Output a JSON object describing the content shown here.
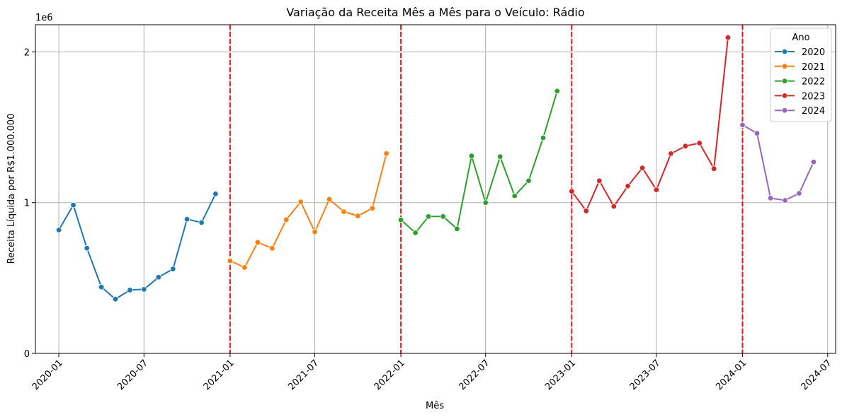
{
  "chart_data": {
    "type": "line",
    "title": "Variação da Receita Mês a Mês para o Veículo: Rádio",
    "xlabel": "Mês",
    "ylabel": "Receita Líquida por R$1.000.000",
    "y_offset_label": "1e6",
    "x_range": [
      "2019-11-12",
      "2024-07-18"
    ],
    "ylim": [
      0,
      2000000
    ],
    "y_ticks": [
      0,
      1000000,
      2000000
    ],
    "y_tick_labels": [
      "0",
      "1",
      "2"
    ],
    "x_ticks": [
      "2020-01-01",
      "2020-07-01",
      "2021-01-01",
      "2021-07-01",
      "2022-01-01",
      "2022-07-01",
      "2023-01-01",
      "2023-07-01",
      "2024-01-01",
      "2024-07-01"
    ],
    "x_tick_labels": [
      "2020-01",
      "2020-07",
      "2021-01",
      "2021-07",
      "2022-01",
      "2022-07",
      "2023-01",
      "2023-07",
      "2024-01",
      "2024-07"
    ],
    "grid": true,
    "vlines": [
      "2021-01-01",
      "2022-01-01",
      "2023-01-01",
      "2024-01-01"
    ],
    "vline_color": "#e8131b",
    "legend": {
      "title": "Ano",
      "placement": "top-right"
    },
    "series": [
      {
        "name": "2020",
        "color": "#1f77b4",
        "x": [
          "2020-01-01",
          "2020-02-01",
          "2020-03-01",
          "2020-04-01",
          "2020-05-01",
          "2020-06-01",
          "2020-07-01",
          "2020-08-01",
          "2020-09-01",
          "2020-10-01",
          "2020-11-01",
          "2020-12-01"
        ],
        "y": [
          818000,
          984000,
          698000,
          440000,
          360000,
          420000,
          425000,
          505000,
          560000,
          890000,
          868000,
          1058000
        ]
      },
      {
        "name": "2021",
        "color": "#ff7f0e",
        "x": [
          "2021-01-01",
          "2021-02-01",
          "2021-03-01",
          "2021-04-01",
          "2021-05-01",
          "2021-06-01",
          "2021-07-01",
          "2021-08-01",
          "2021-09-01",
          "2021-10-01",
          "2021-11-01",
          "2021-12-01"
        ],
        "y": [
          614000,
          570000,
          737000,
          697000,
          887000,
          1005000,
          806000,
          1022000,
          940000,
          912000,
          963000,
          1326000
        ]
      },
      {
        "name": "2022",
        "color": "#2ca02c",
        "x": [
          "2022-01-01",
          "2022-02-01",
          "2022-03-01",
          "2022-04-01",
          "2022-05-01",
          "2022-06-01",
          "2022-07-01",
          "2022-08-01",
          "2022-09-01",
          "2022-10-01",
          "2022-11-01",
          "2022-12-01"
        ],
        "y": [
          886000,
          800000,
          908000,
          908000,
          826000,
          1310000,
          1000000,
          1305000,
          1045000,
          1145000,
          1430000,
          1740000
        ]
      },
      {
        "name": "2023",
        "color": "#d62728",
        "x": [
          "2023-01-01",
          "2023-02-01",
          "2023-03-01",
          "2023-04-01",
          "2023-05-01",
          "2023-06-01",
          "2023-07-01",
          "2023-08-01",
          "2023-09-01",
          "2023-10-01",
          "2023-11-01",
          "2023-12-01"
        ],
        "y": [
          1075000,
          945000,
          1145000,
          975000,
          1110000,
          1230000,
          1085000,
          1325000,
          1375000,
          1395000,
          1225000,
          2095000
        ]
      },
      {
        "name": "2024",
        "color": "#9467bd",
        "x": [
          "2024-01-01",
          "2024-02-01",
          "2024-03-01",
          "2024-04-01",
          "2024-05-01",
          "2024-06-01"
        ],
        "y": [
          1515000,
          1460000,
          1030000,
          1015000,
          1062000,
          1270000
        ]
      }
    ]
  }
}
